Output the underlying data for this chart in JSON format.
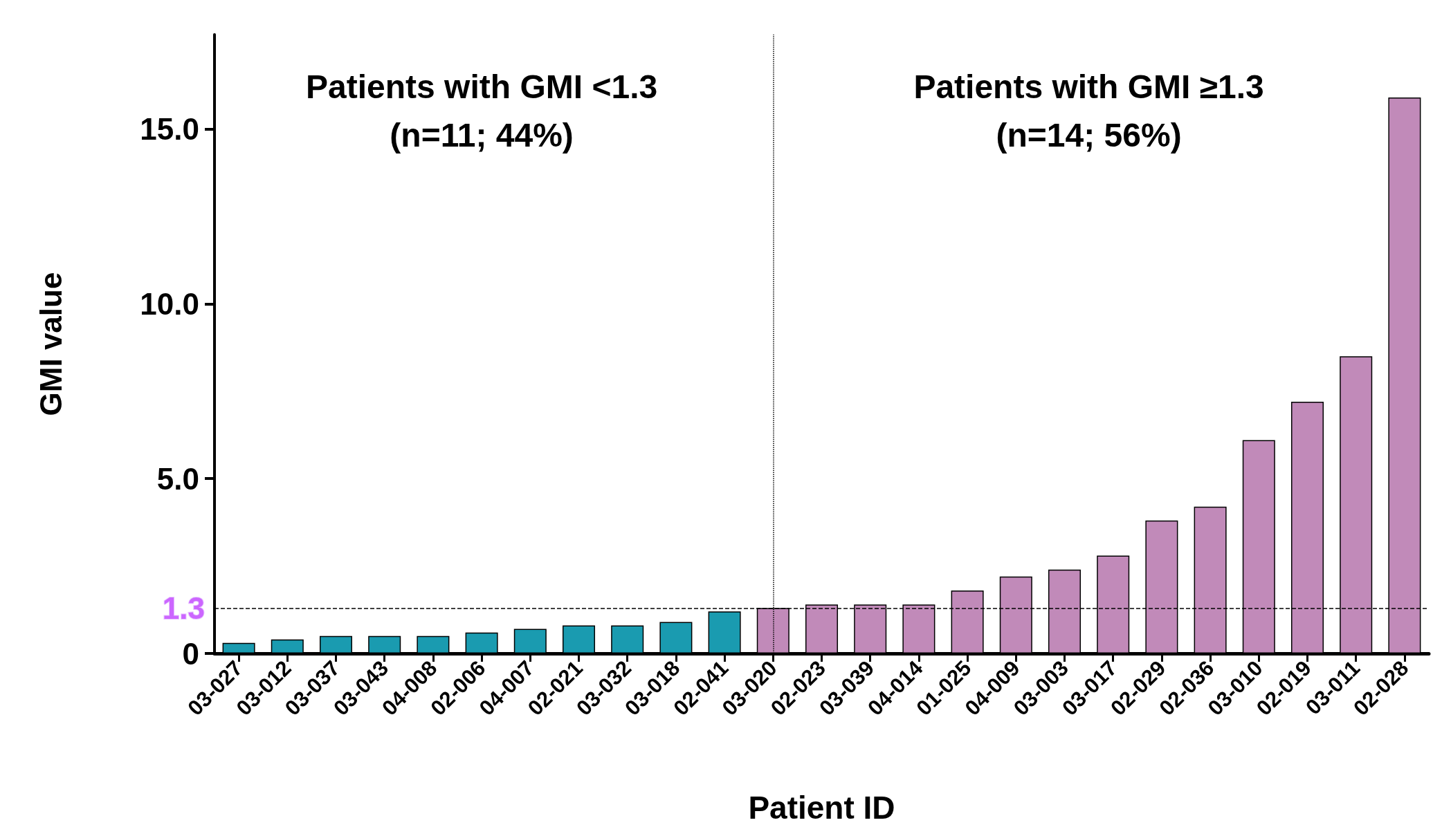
{
  "chart_data": {
    "type": "bar",
    "xlabel": "Patient ID",
    "ylabel": "GMI value",
    "categories": [
      "03-027",
      "03-012",
      "03-037",
      "03-043",
      "04-008",
      "02-006",
      "04-007",
      "02-021",
      "03-032",
      "03-018",
      "02-041",
      "03-020",
      "02-023",
      "03-039",
      "04-014",
      "01-025",
      "04-009",
      "03-003",
      "03-017",
      "02-029",
      "02-036",
      "03-010",
      "02-019",
      "03-011",
      "02-028"
    ],
    "values": [
      0.3,
      0.4,
      0.5,
      0.5,
      0.5,
      0.6,
      0.7,
      0.8,
      0.8,
      0.9,
      1.2,
      1.3,
      1.4,
      1.4,
      1.4,
      1.8,
      2.2,
      2.4,
      2.8,
      3.8,
      4.2,
      6.1,
      7.2,
      8.5,
      15.9
    ],
    "colors": [
      "#1a9bb0",
      "#1a9bb0",
      "#1a9bb0",
      "#1a9bb0",
      "#1a9bb0",
      "#1a9bb0",
      "#1a9bb0",
      "#1a9bb0",
      "#1a9bb0",
      "#1a9bb0",
      "#1a9bb0",
      "#c18ab9",
      "#c18ab9",
      "#c18ab9",
      "#c18ab9",
      "#c18ab9",
      "#c18ab9",
      "#c18ab9",
      "#c18ab9",
      "#c18ab9",
      "#c18ab9",
      "#c18ab9",
      "#c18ab9",
      "#c18ab9",
      "#c18ab9"
    ],
    "ylim": [
      0,
      17.7
    ],
    "yticks": [
      0,
      {
        "value": 5,
        "label": "5.0"
      },
      {
        "value": 10,
        "label": "10.0"
      },
      {
        "value": 15,
        "label": "15.0"
      }
    ],
    "ref_lines": [
      {
        "axis": "y",
        "value": 1.3,
        "label": "1.3",
        "line_style": "dashed"
      }
    ],
    "annotations": [
      "Patients with GMI <1.3\n(n=11; 44%)",
      "Patients with GMI ≥1.3\n(n=14; 56%)"
    ],
    "grid": false
  }
}
